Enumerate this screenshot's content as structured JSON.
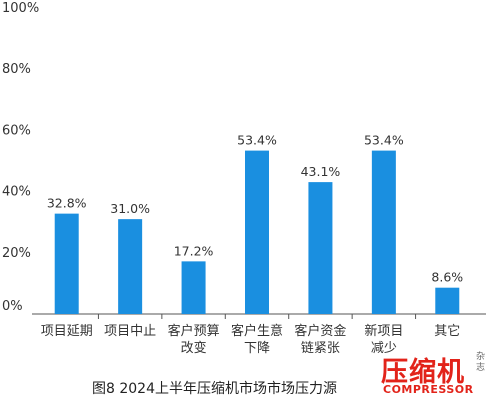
{
  "chart_data": {
    "type": "bar",
    "title": "",
    "xlabel": "",
    "ylabel": "",
    "ylim": [
      0,
      100
    ],
    "yticks": [
      "0%",
      "20%",
      "40%",
      "60%",
      "80%",
      "100%"
    ],
    "categories": [
      [
        "项目延期"
      ],
      [
        "项目中止"
      ],
      [
        "客户预算",
        "改变"
      ],
      [
        "客户生意",
        "下降"
      ],
      [
        "客户资金",
        "链紧张"
      ],
      [
        "新项目",
        "减少"
      ],
      [
        "其它"
      ]
    ],
    "values": [
      32.8,
      31.0,
      17.2,
      53.4,
      43.1,
      53.4,
      8.6
    ],
    "value_labels": [
      "32.8%",
      "31.0%",
      "17.2%",
      "53.4%",
      "43.1%",
      "53.4%",
      "8.6%"
    ],
    "grid": false,
    "legend": "none",
    "bar_color": "#1a8fe0",
    "axis_color": "#555555"
  },
  "caption": "图8  2024上半年压缩机市场市场压力源",
  "logo": {
    "text": "压缩机",
    "side_text": "杂志",
    "english": "COMPRESSOR",
    "color": "#e2231a"
  }
}
